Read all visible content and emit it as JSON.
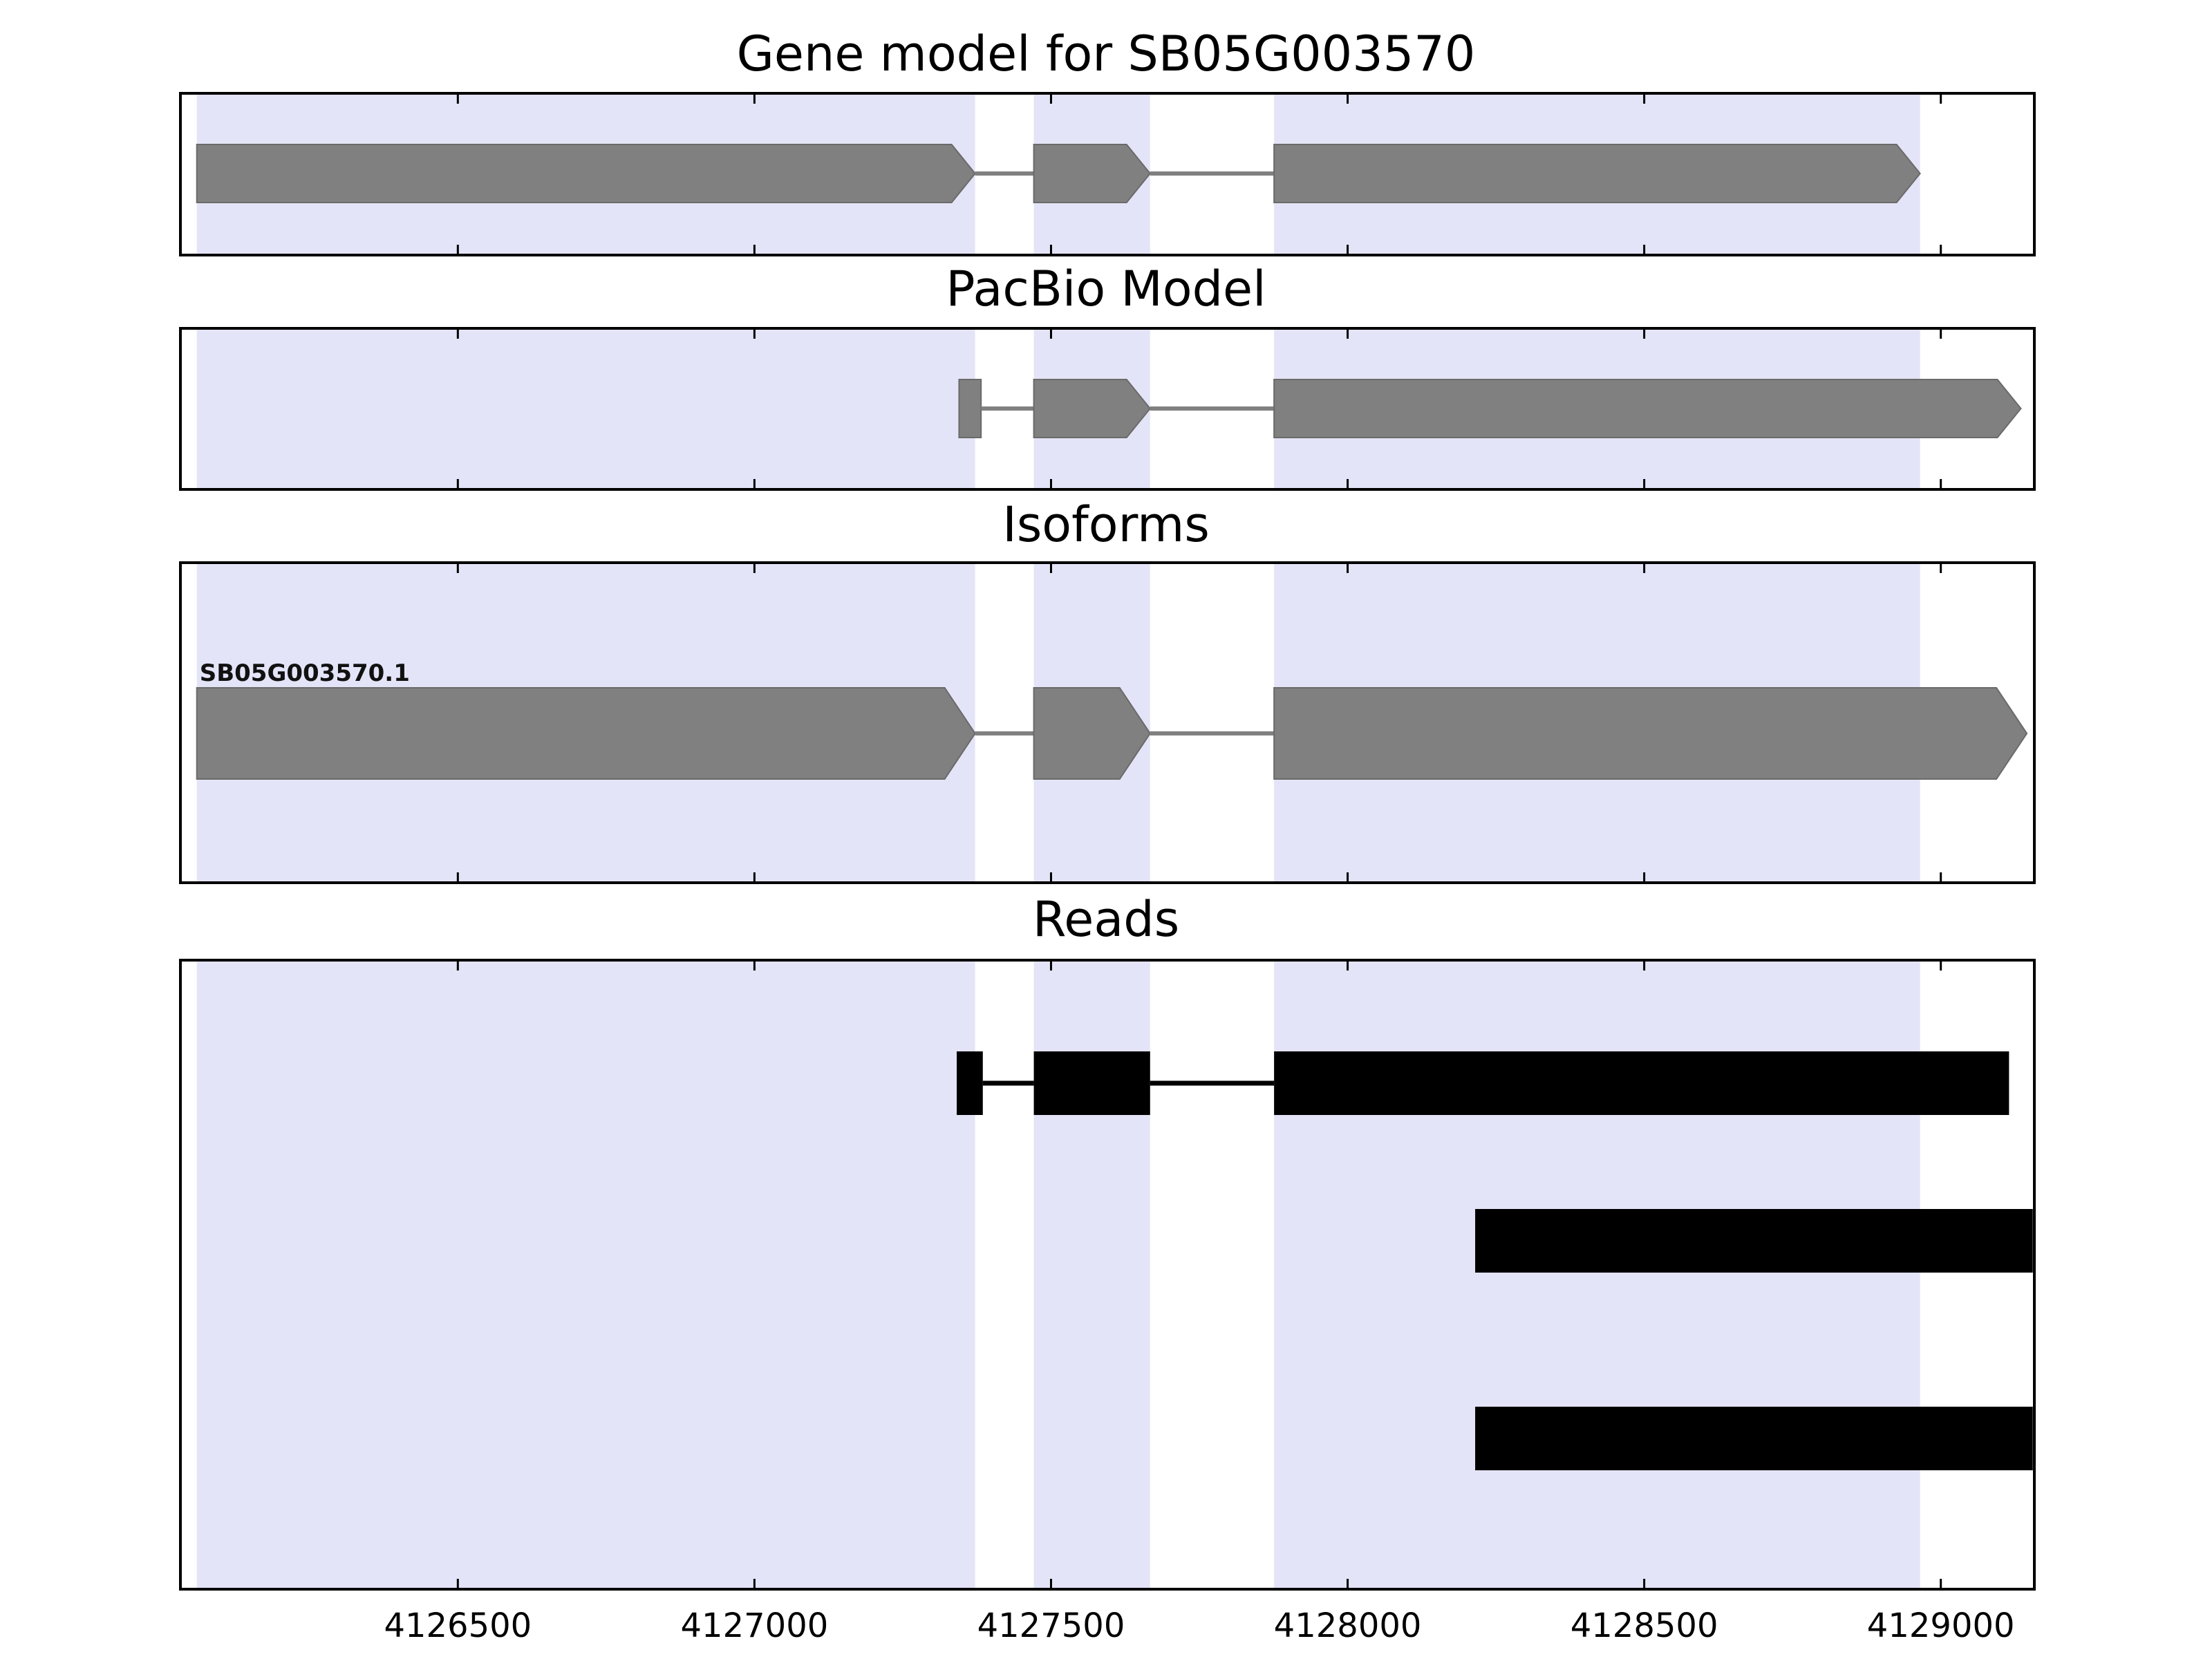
{
  "colors": {
    "background": "#ffffff",
    "highlight": "#e4e4f8",
    "gene_fill": "#808080",
    "gene_edge": "#6a6a6a",
    "intron": "#808080",
    "read_fill": "#000000",
    "panel_border": "#000000",
    "text": "#000000"
  },
  "chart_data": {
    "type": "genome-tracks",
    "x_domain": [
      4126030,
      4129160
    ],
    "x_ticks": [
      4126500,
      4127000,
      4127500,
      4128000,
      4128500,
      4129000
    ],
    "highlight_regions": [
      [
        4126060,
        4127372
      ],
      [
        4127471,
        4127667
      ],
      [
        4127876,
        4128965
      ]
    ],
    "panels": [
      {
        "id": "gene-model",
        "title": "Gene model for SB05G003570",
        "rows": [
          {
            "label": "",
            "segments": [
              {
                "kind": "exon",
                "start": 4126060,
                "end": 4127372,
                "tip": "right"
              },
              {
                "kind": "intron",
                "start": 4127372,
                "end": 4127471
              },
              {
                "kind": "exon",
                "start": 4127471,
                "end": 4127667,
                "tip": "right"
              },
              {
                "kind": "intron",
                "start": 4127667,
                "end": 4127876
              },
              {
                "kind": "exon",
                "start": 4127876,
                "end": 4128965,
                "tip": "right"
              }
            ]
          }
        ]
      },
      {
        "id": "pacbio-model",
        "title": "PacBio Model",
        "rows": [
          {
            "label": "",
            "segments": [
              {
                "kind": "exon",
                "start": 4127345,
                "end": 4127382,
                "tip": "none"
              },
              {
                "kind": "intron",
                "start": 4127382,
                "end": 4127471
              },
              {
                "kind": "exon",
                "start": 4127471,
                "end": 4127667,
                "tip": "right"
              },
              {
                "kind": "intron",
                "start": 4127667,
                "end": 4127876
              },
              {
                "kind": "exon",
                "start": 4127876,
                "end": 4129135,
                "tip": "right"
              }
            ]
          }
        ]
      },
      {
        "id": "isoforms",
        "title": "Isoforms",
        "rows": [
          {
            "label": "SB05G003570.1",
            "segments": [
              {
                "kind": "exon",
                "start": 4126060,
                "end": 4127372,
                "tip": "right"
              },
              {
                "kind": "intron",
                "start": 4127372,
                "end": 4127471
              },
              {
                "kind": "exon",
                "start": 4127471,
                "end": 4127667,
                "tip": "right"
              },
              {
                "kind": "intron",
                "start": 4127667,
                "end": 4127876
              },
              {
                "kind": "exon",
                "start": 4127876,
                "end": 4129145,
                "tip": "right"
              }
            ]
          }
        ]
      },
      {
        "id": "reads",
        "title": "Reads",
        "rows": [
          {
            "label": "",
            "segments": [
              {
                "kind": "read",
                "start": 4127341,
                "end": 4127385
              },
              {
                "kind": "readline",
                "start": 4127385,
                "end": 4127471
              },
              {
                "kind": "read",
                "start": 4127471,
                "end": 4127667
              },
              {
                "kind": "readline",
                "start": 4127667,
                "end": 4127876
              },
              {
                "kind": "read",
                "start": 4127876,
                "end": 4129115
              }
            ]
          },
          {
            "label": "",
            "segments": [
              {
                "kind": "read",
                "start": 4128215,
                "end": 4129155
              }
            ]
          },
          {
            "label": "",
            "segments": [
              {
                "kind": "read",
                "start": 4128215,
                "end": 4129155
              }
            ]
          }
        ]
      }
    ]
  }
}
